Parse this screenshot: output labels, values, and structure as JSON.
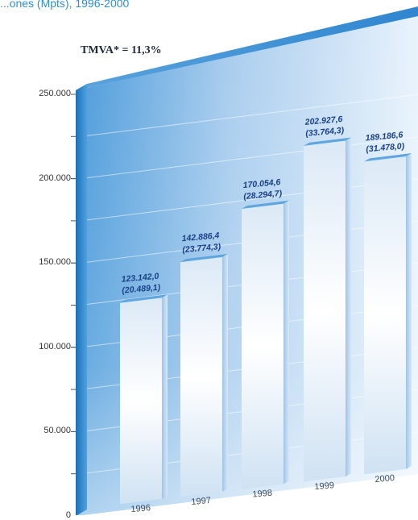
{
  "caption": "...ones (Mpts), 1996-2000",
  "annotation": "TMVA* = 11,3%",
  "colors": {
    "wall_dark": "#2f8bd2",
    "wall_light": "#e8f2fb",
    "bar_face": "#ffffff",
    "value_text": "#1b3f86"
  },
  "chart_data": {
    "type": "bar",
    "categories": [
      "1996",
      "1997",
      "1998",
      "1999",
      "2000"
    ],
    "x_tick_labels": [
      "1996",
      "1997",
      "1998",
      "1999",
      "2000"
    ],
    "values": [
      123142.0,
      142886.4,
      170054.6,
      202927.6,
      189186.6
    ],
    "secondary_values": [
      20489.1,
      23774.3,
      28294.7,
      33764.3,
      31478.0
    ],
    "value_labels": [
      "123.142,0",
      "142.886,4",
      "170.054,6",
      "202.927,6",
      "189.186,6"
    ],
    "secondary_labels": [
      "(20.489,1)",
      "(23.774,3)",
      "(28.294,7)",
      "(33.764,3)",
      "(31.478,0)"
    ],
    "ylim": [
      0,
      250000
    ],
    "yticks": [
      "0",
      "50.000",
      "100.000",
      "150.000",
      "200.000",
      "250.000"
    ],
    "title": "",
    "xlabel": "",
    "ylabel": "",
    "grid": true
  }
}
